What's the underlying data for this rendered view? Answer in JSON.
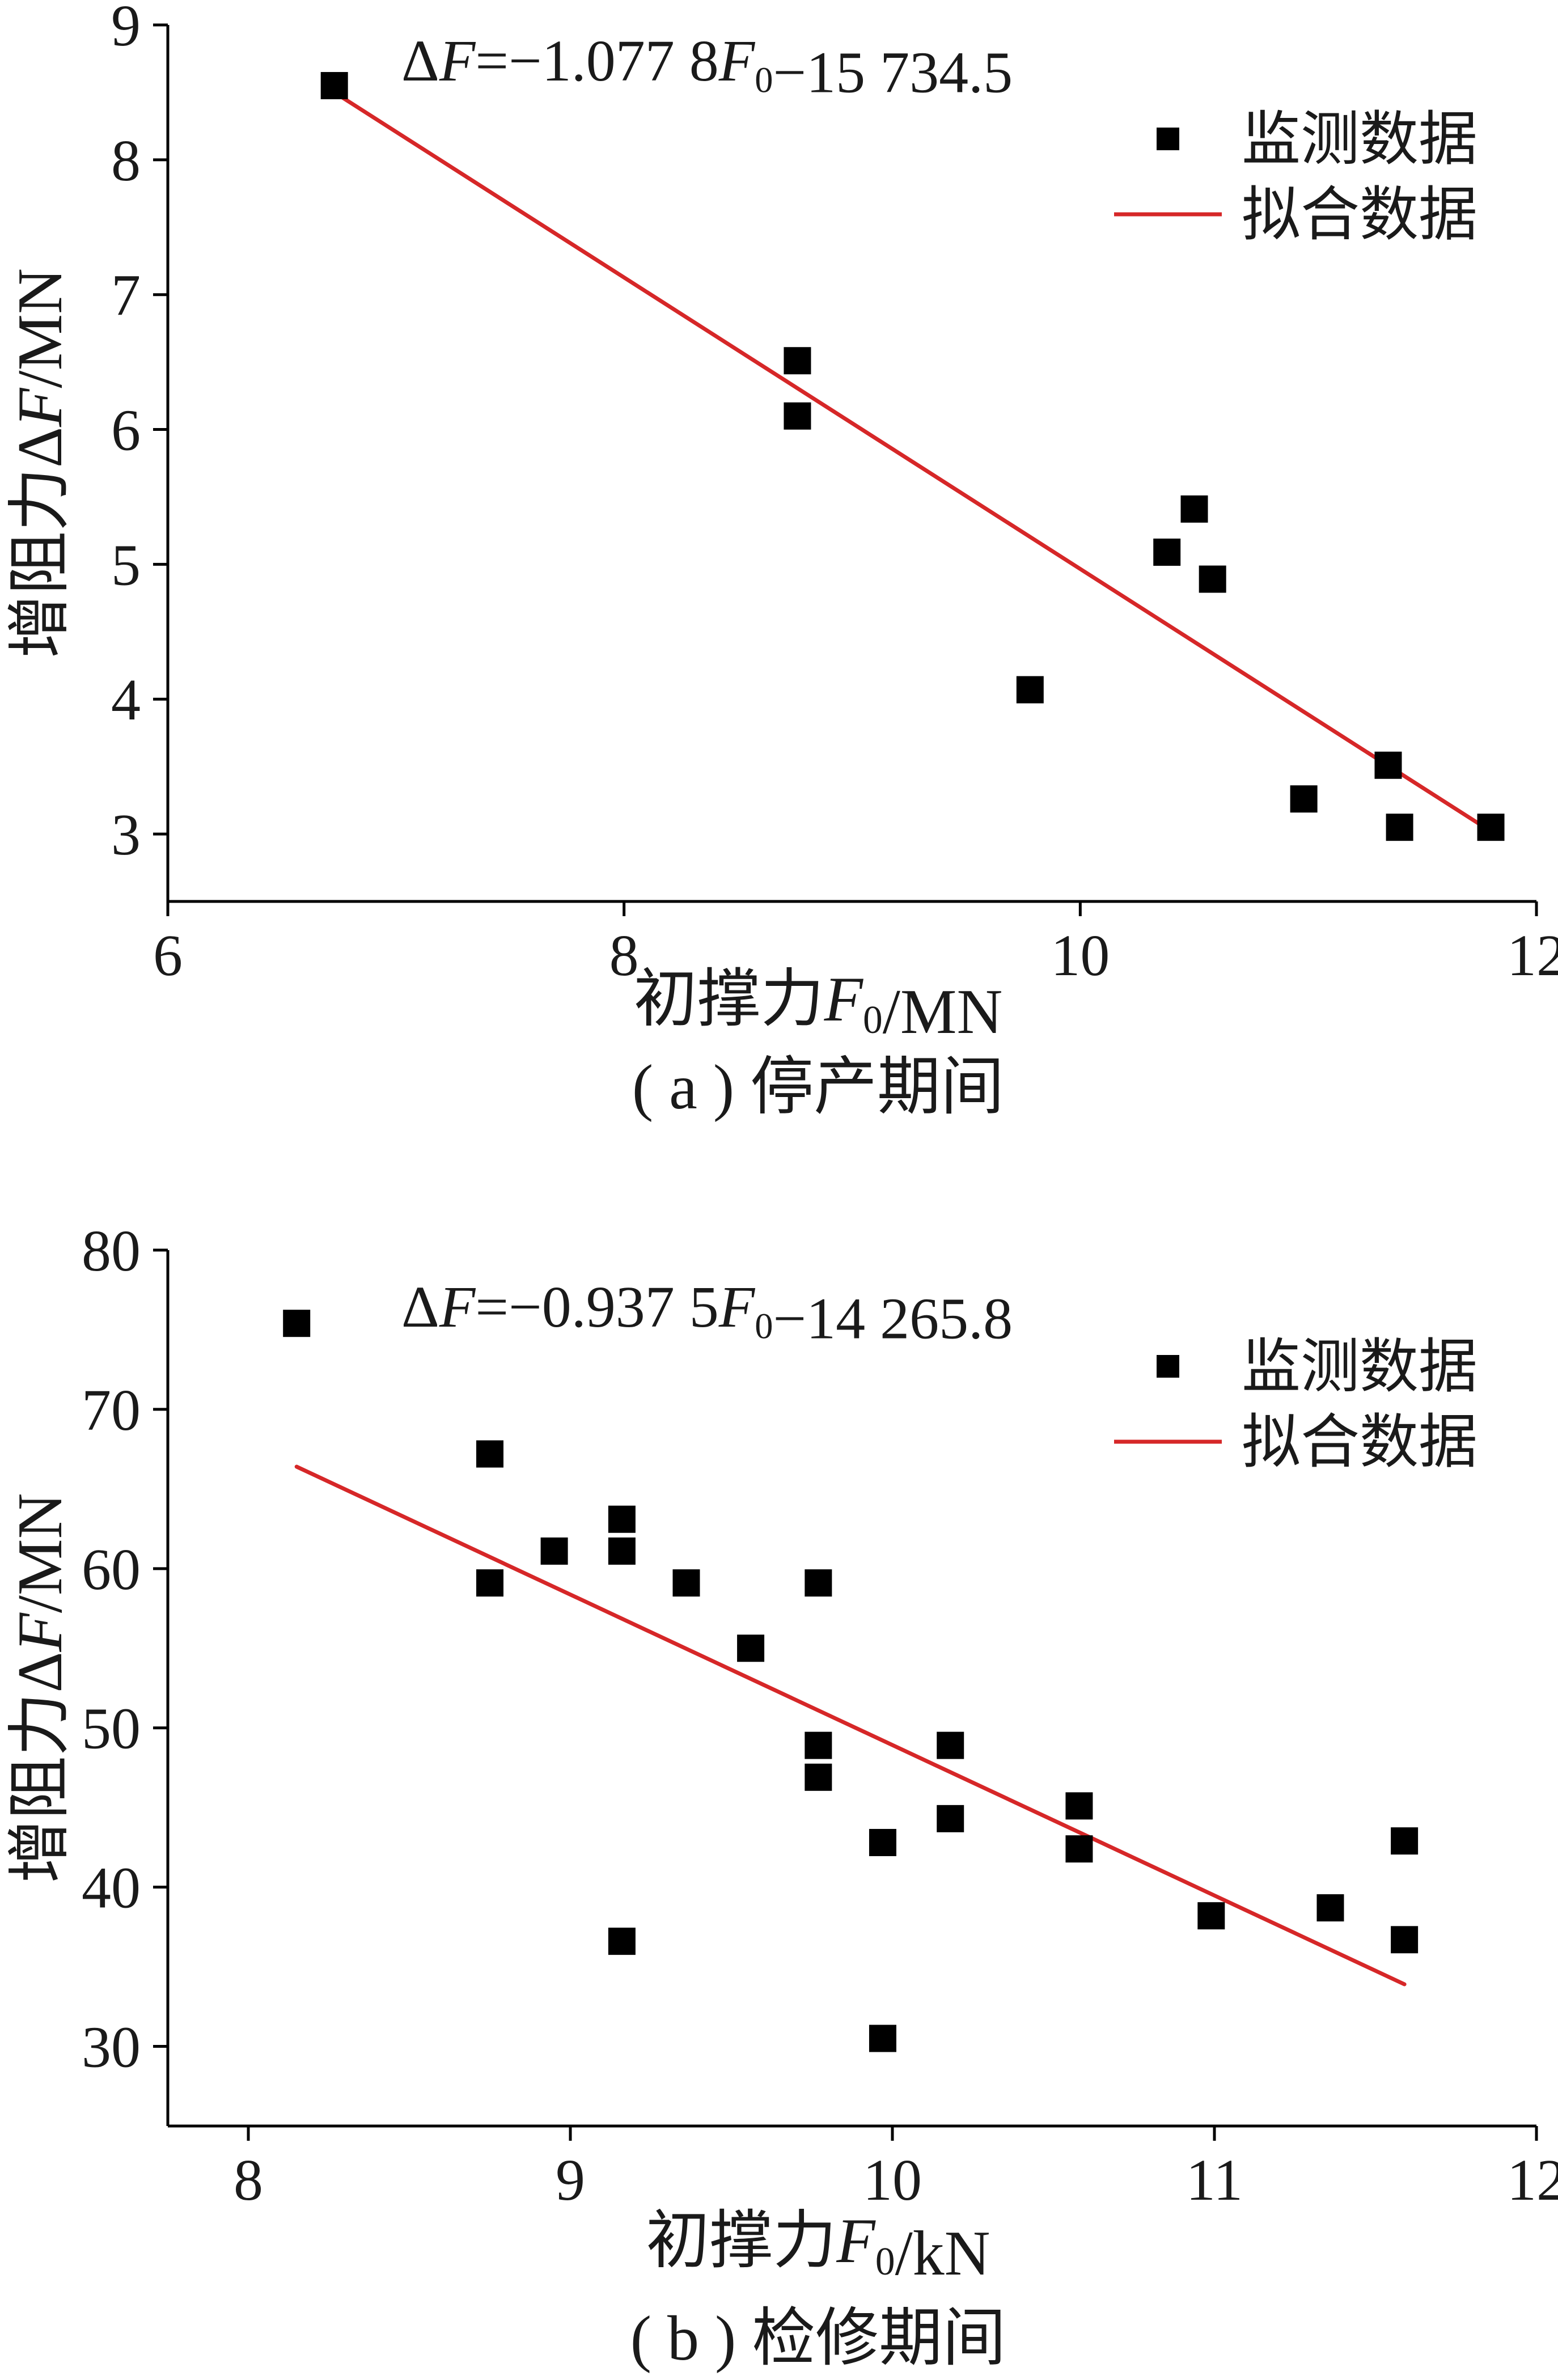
{
  "chart_data": [
    {
      "type": "scatter",
      "caption": "( a ) 停产期间",
      "xlabel": "初撑力F0/MN",
      "ylabel": "增阻力ΔF/MN",
      "equation": "ΔF=−1.077 8F0−15 734.5",
      "xlim": [
        6,
        12
      ],
      "ylim": [
        2.5,
        9
      ],
      "xticks": [
        "6",
        "8",
        "10",
        "12"
      ],
      "yticks": [
        "3",
        "4",
        "5",
        "6",
        "7",
        "8",
        "9"
      ],
      "legend": [
        "监测数据",
        "拟合数据"
      ],
      "legend_position": "top-right",
      "grid": false,
      "series": [
        {
          "name": "监测数据",
          "kind": "points",
          "color": "#000000",
          "x": [
            6.73,
            8.76,
            8.76,
            9.78,
            10.38,
            10.5,
            10.58,
            10.98,
            11.35,
            11.4,
            11.8
          ],
          "y": [
            8.55,
            6.51,
            6.1,
            4.07,
            5.09,
            5.41,
            4.89,
            3.26,
            3.51,
            3.05,
            3.05
          ]
        },
        {
          "name": "拟合数据",
          "kind": "line",
          "color": "#d62728",
          "x": [
            6.73,
            11.8
          ],
          "y": [
            8.5,
            3.02
          ]
        }
      ]
    },
    {
      "type": "scatter",
      "caption": "( b ) 检修期间",
      "xlabel": "初撑力F0/kN",
      "ylabel": "增阻力ΔF/MN",
      "equation": "ΔF=−0.937 5F0−14 265.8",
      "xlim": [
        7.75,
        12
      ],
      "ylim": [
        25,
        80
      ],
      "xticks": [
        "8",
        "9",
        "10",
        "11",
        "12"
      ],
      "yticks": [
        "30",
        "40",
        "50",
        "60",
        "70",
        "80"
      ],
      "legend": [
        "监测数据",
        "拟合数据"
      ],
      "legend_position": "top-right",
      "grid": false,
      "series": [
        {
          "name": "监测数据",
          "kind": "points",
          "color": "#000000",
          "x": [
            8.15,
            8.75,
            8.75,
            8.95,
            9.16,
            9.16,
            9.16,
            9.36,
            9.56,
            9.77,
            9.77,
            9.77,
            9.97,
            9.97,
            10.18,
            10.18,
            10.58,
            10.58,
            10.99,
            11.36,
            11.59,
            11.59
          ],
          "y": [
            75.4,
            67.2,
            59.1,
            61.1,
            63.1,
            61.1,
            36.6,
            59.1,
            55.0,
            59.1,
            48.9,
            46.9,
            42.8,
            30.5,
            48.9,
            44.3,
            45.1,
            42.4,
            38.2,
            38.7,
            42.9,
            36.7
          ]
        },
        {
          "name": "拟合数据",
          "kind": "line",
          "color": "#d62728",
          "x": [
            8.15,
            11.59
          ],
          "y": [
            66.4,
            33.9
          ]
        }
      ]
    }
  ]
}
